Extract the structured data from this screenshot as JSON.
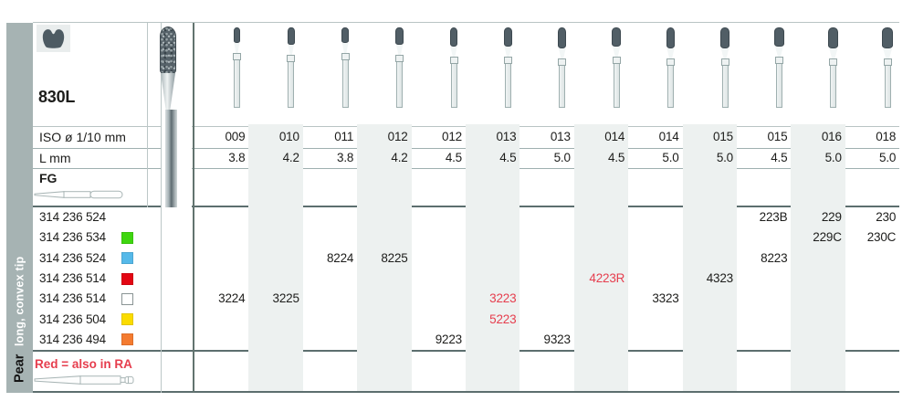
{
  "sidebar": {
    "category": "Pear",
    "subtitle": "long, convex tip"
  },
  "header": {
    "figure": "830L",
    "iso_label": "ISO ø 1/10 mm",
    "length_label": "L mm",
    "shank_label": "FG"
  },
  "icons": {
    "shape_icon": "pear-crown-icon",
    "column_bur_icon": "diamond-bur-icon",
    "photo": "diamond-bur-photo",
    "fg_shank_icon": "fg-shank-icon",
    "ra_shank_icon": "ra-latch-shank-icon"
  },
  "columns": [
    {
      "iso": "009",
      "l": "3.8"
    },
    {
      "iso": "010",
      "l": "4.2"
    },
    {
      "iso": "011",
      "l": "3.8"
    },
    {
      "iso": "012",
      "l": "4.2"
    },
    {
      "iso": "012",
      "l": "4.5"
    },
    {
      "iso": "013",
      "l": "4.5"
    },
    {
      "iso": "013",
      "l": "5.0"
    },
    {
      "iso": "014",
      "l": "4.5"
    },
    {
      "iso": "014",
      "l": "5.0"
    },
    {
      "iso": "015",
      "l": "5.0"
    },
    {
      "iso": "015",
      "l": "4.5"
    },
    {
      "iso": "016",
      "l": "5.0"
    },
    {
      "iso": "018",
      "l": "5.0"
    }
  ],
  "products": [
    {
      "order_no": "314 236 524",
      "grit_name": null,
      "grit_color": null,
      "cells": [
        {
          "col": 11,
          "value": "223B"
        },
        {
          "col": 12,
          "value": "229"
        },
        {
          "col": 13,
          "value": "230"
        }
      ]
    },
    {
      "order_no": "314 236 534",
      "grit_name": "green",
      "grit_color": "#3fd60f",
      "cells": [
        {
          "col": 12,
          "value": "229C"
        },
        {
          "col": 13,
          "value": "230C"
        }
      ]
    },
    {
      "order_no": "314 236 524",
      "grit_name": "blue",
      "grit_color": "#55b9e9",
      "cells": [
        {
          "col": 3,
          "value": "8224"
        },
        {
          "col": 4,
          "value": "8225"
        },
        {
          "col": 11,
          "value": "8223"
        }
      ]
    },
    {
      "order_no": "314 236 514",
      "grit_name": "red",
      "grit_color": "#e30613",
      "cells": [
        {
          "col": 8,
          "value": "4223R",
          "red": true
        },
        {
          "col": 10,
          "value": "4323"
        }
      ]
    },
    {
      "order_no": "314 236 514",
      "grit_name": "white",
      "grit_color": "#ffffff",
      "cells": [
        {
          "col": 1,
          "value": "3224"
        },
        {
          "col": 2,
          "value": "3225"
        },
        {
          "col": 6,
          "value": "3223",
          "red": true
        },
        {
          "col": 9,
          "value": "3323"
        }
      ]
    },
    {
      "order_no": "314 236 504",
      "grit_name": "yellow",
      "grit_color": "#fbdc00",
      "cells": [
        {
          "col": 6,
          "value": "5223",
          "red": true
        }
      ]
    },
    {
      "order_no": "314 236 494",
      "grit_name": "orange",
      "grit_color": "#f47b30",
      "cells": [
        {
          "col": 5,
          "value": "9223"
        },
        {
          "col": 7,
          "value": "9323"
        }
      ]
    }
  ],
  "footnote": {
    "text": "Red = also in RA"
  },
  "colors": {
    "accent_red_text": "#e63e4e",
    "sidebar_bg": "#a6b3b3",
    "stripe_bg": "#edf1f0",
    "bur_head": "#515e66",
    "text": "#1d1d1b"
  }
}
